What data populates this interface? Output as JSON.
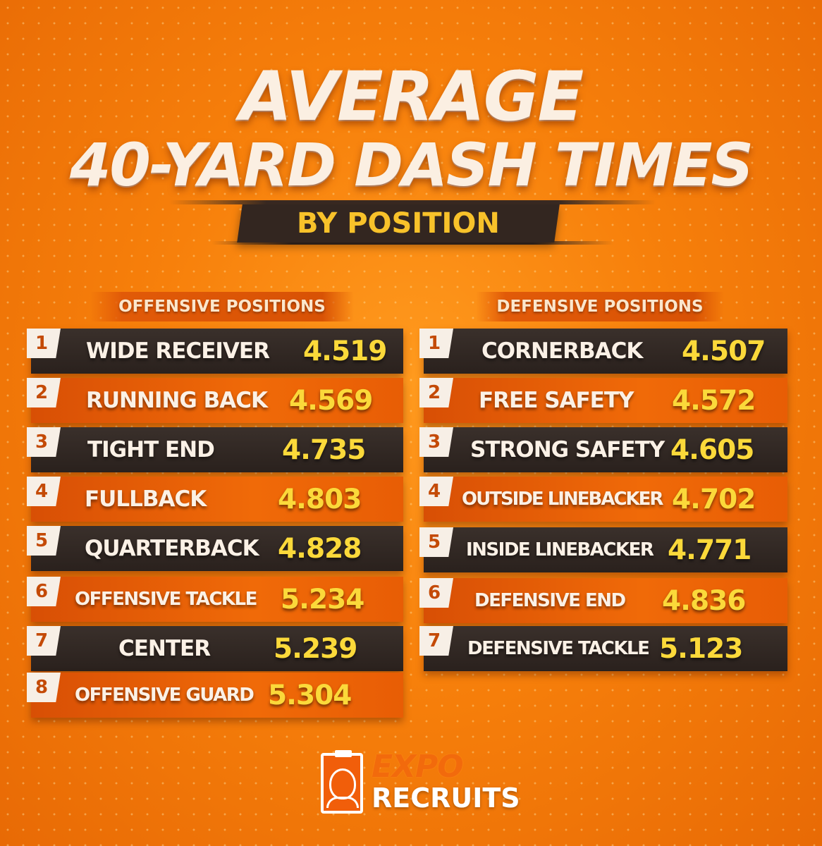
{
  "title": {
    "line1": "AVERAGE",
    "line2": "40-YARD DASH TIMES",
    "subtitle": "BY POSITION"
  },
  "offense": {
    "header": "OFFENSIVE POSITIONS",
    "rows": [
      {
        "rank": "1",
        "position": "WIDE RECEIVER",
        "time": "4.519"
      },
      {
        "rank": "2",
        "position": "RUNNING BACK",
        "time": "4.569"
      },
      {
        "rank": "3",
        "position": "TIGHT END",
        "time": "4.735"
      },
      {
        "rank": "4",
        "position": "FULLBACK",
        "time": "4.803"
      },
      {
        "rank": "5",
        "position": "QUARTERBACK",
        "time": "4.828"
      },
      {
        "rank": "6",
        "position": "OFFENSIVE TACKLE",
        "time": "5.234"
      },
      {
        "rank": "7",
        "position": "CENTER",
        "time": "5.239"
      },
      {
        "rank": "8",
        "position": "OFFENSIVE GUARD",
        "time": "5.304"
      }
    ]
  },
  "defense": {
    "header": "DEFENSIVE POSITIONS",
    "rows": [
      {
        "rank": "1",
        "position": "CORNERBACK",
        "time": "4.507"
      },
      {
        "rank": "2",
        "position": "FREE SAFETY",
        "time": "4.572"
      },
      {
        "rank": "3",
        "position": "STRONG SAFETY",
        "time": "4.605"
      },
      {
        "rank": "4",
        "position": "OUTSIDE LINEBACKER",
        "time": "4.702"
      },
      {
        "rank": "5",
        "position": "INSIDE LINEBACKER",
        "time": "4.771"
      },
      {
        "rank": "6",
        "position": "DEFENSIVE END",
        "time": "4.836"
      },
      {
        "rank": "7",
        "position": "DEFENSIVE TACKLE",
        "time": "5.123"
      }
    ]
  },
  "logo": {
    "top": "EXPO",
    "bottom": "RECRUITS",
    "icon": "clipboard-person-icon"
  },
  "colors": {
    "background": "#f7800b",
    "dark_row": "#2f2621",
    "orange_row": "#ec6206",
    "value_yellow": "#fbd93a",
    "title_cream": "#fbefe2"
  }
}
